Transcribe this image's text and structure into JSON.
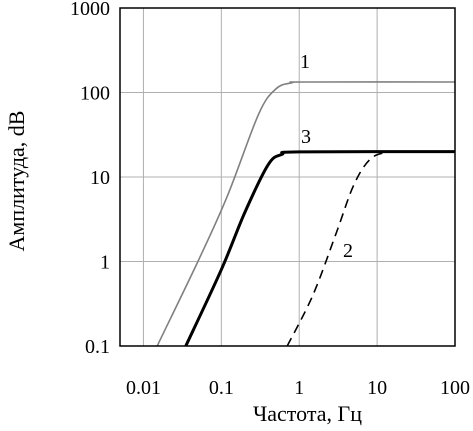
{
  "chart_data": {
    "type": "line",
    "title": "",
    "xlabel": "Частота, Гц",
    "ylabel": "Амплитуда, dB",
    "x_scale": "log",
    "y_scale": "log",
    "xlim": [
      0.005,
      100
    ],
    "ylim": [
      0.1,
      1000
    ],
    "grid": true,
    "legend": "none",
    "x_ticks": [
      "0.01",
      "0.1",
      "1",
      "10",
      "100"
    ],
    "x_tick_values": [
      0.01,
      0.1,
      1,
      10,
      100
    ],
    "y_ticks": [
      "0.1",
      "1",
      "10",
      "100",
      "1000"
    ],
    "y_tick_values": [
      0.1,
      1,
      10,
      100,
      1000
    ],
    "series": [
      {
        "label": "1",
        "color": "#808080",
        "style": "solid",
        "points": [
          [
            0.015,
            0.1
          ],
          [
            0.05,
            1.0
          ],
          [
            0.12,
            6.0
          ],
          [
            0.3,
            55
          ],
          [
            0.5,
            110
          ],
          [
            0.8,
            130
          ],
          [
            1.2,
            133
          ],
          [
            100,
            133
          ]
        ]
      },
      {
        "label": "2",
        "color": "#000000",
        "style": "dashed",
        "points": [
          [
            0.7,
            0.1
          ],
          [
            1.5,
            0.4
          ],
          [
            3,
            2.2
          ],
          [
            5,
            8
          ],
          [
            8,
            16
          ],
          [
            13,
            19.5
          ],
          [
            25,
            20
          ],
          [
            100,
            20
          ]
        ]
      },
      {
        "label": "3",
        "color": "#000000",
        "style": "bold",
        "points": [
          [
            0.035,
            0.1
          ],
          [
            0.1,
            0.8
          ],
          [
            0.2,
            3.8
          ],
          [
            0.4,
            14
          ],
          [
            0.6,
            18.5
          ],
          [
            1,
            19.8
          ],
          [
            100,
            20
          ]
        ]
      }
    ]
  }
}
